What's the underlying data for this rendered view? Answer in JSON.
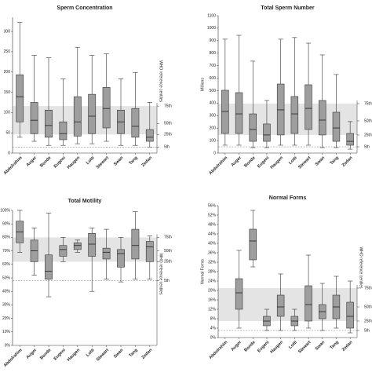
{
  "chart_data": [
    {
      "type": "box",
      "title": "Sperm Concentration",
      "categories": [
        "Abdolrahim",
        "Auger",
        "Bonde",
        "Eugeni",
        "Haugen",
        "Lotti",
        "Stewart",
        "Swan",
        "Tang",
        "Zedan"
      ],
      "max": [
        322,
        241,
        235,
        183,
        261,
        241,
        245,
        183,
        199,
        125
      ],
      "q3": [
        193,
        125,
        106,
        77,
        139,
        145,
        162,
        106,
        110,
        58
      ],
      "median": [
        139,
        81,
        68,
        48,
        77,
        91,
        110,
        77,
        66,
        39
      ],
      "q1": [
        77,
        48,
        39,
        33,
        42,
        48,
        62,
        48,
        39,
        29
      ],
      "min": [
        39,
        29,
        19,
        19,
        23,
        23,
        29,
        19,
        19,
        15
      ],
      "color": "#9e9e9e",
      "ylim": [
        0,
        335
      ],
      "yticks": [
        0,
        50,
        100,
        150,
        200,
        250,
        300
      ],
      "reference": {
        "title": "WHO reference centiles",
        "labels": [
          "75th",
          "50th",
          "25th",
          "5th"
        ],
        "values": [
          116,
          73,
          46,
          15
        ]
      }
    },
    {
      "type": "box",
      "title": "Total Sperm Number",
      "ylabel": "Millions",
      "categories": [
        "Abdolrahim",
        "Auger",
        "Bonde",
        "Eugeni",
        "Haugen",
        "Lotti",
        "Stewart",
        "Swan",
        "Tang",
        "Zedan"
      ],
      "max": [
        912,
        943,
        736,
        421,
        912,
        925,
        880,
        786,
        629,
        252
      ],
      "q3": [
        503,
        484,
        314,
        233,
        553,
        453,
        547,
        421,
        327,
        157
      ],
      "median": [
        333,
        314,
        189,
        145,
        346,
        314,
        358,
        264,
        201,
        94
      ],
      "q1": [
        157,
        157,
        94,
        94,
        145,
        157,
        189,
        145,
        94,
        63
      ],
      "min": [
        63,
        63,
        44,
        44,
        63,
        63,
        63,
        44,
        44,
        31
      ],
      "color": "#9e9e9e",
      "ylim": [
        0,
        1100
      ],
      "yticks": [
        0,
        100,
        200,
        300,
        400,
        500,
        600,
        700,
        800,
        900,
        1000,
        1100
      ],
      "reference": {
        "labels": [
          "75th",
          "50th",
          "25th",
          "5th"
        ],
        "values": [
          396,
          258,
          145,
          50
        ]
      }
    },
    {
      "type": "box",
      "title": "Total Motility",
      "categories": [
        "Abdolrahim",
        "Auger",
        "Bonde",
        "Eugeni",
        "Haugen",
        "Lotti",
        "Stewart",
        "Swan",
        "Tang",
        "Zedan"
      ],
      "max": [
        100,
        87,
        98,
        80,
        78,
        87,
        86,
        80,
        99,
        81
      ],
      "q3": [
        92,
        78,
        67,
        74,
        76,
        83,
        72,
        71,
        86,
        77
      ],
      "median": [
        84,
        70,
        55,
        71,
        74,
        75,
        69,
        68,
        74,
        73
      ],
      "q1": [
        76,
        62,
        49,
        66,
        71,
        66,
        64,
        58,
        64,
        62
      ],
      "min": [
        69,
        52,
        36,
        62,
        69,
        40,
        49,
        47,
        49,
        49
      ],
      "color": "#9e9e9e",
      "ylim": [
        0,
        100
      ],
      "yticks": [
        {
          "value": 0,
          "label": "0%"
        },
        {
          "value": 10,
          "label": "10%"
        },
        {
          "value": 20,
          "label": "20%"
        },
        {
          "value": 30,
          "label": "30%"
        },
        {
          "value": 40,
          "label": "40%"
        },
        {
          "value": 50,
          "label": "50%"
        },
        {
          "value": 60,
          "label": "60%"
        },
        {
          "value": 70,
          "label": "70%"
        },
        {
          "value": 80,
          "label": "80%"
        },
        {
          "value": 90,
          "label": "90%"
        },
        {
          "value": 100,
          "label": "100%"
        }
      ],
      "reference": {
        "title": "WHO reference centiles",
        "labels": [
          "75th",
          "50th",
          "25th",
          "5th"
        ],
        "values": [
          80,
          70,
          62,
          48
        ]
      }
    },
    {
      "type": "box",
      "title": "Normal Forms",
      "ylabel": "Normal Forms",
      "categories": [
        "Abdolrahim",
        "Auger",
        "Bonde",
        "Eugeni",
        "Haugen",
        "Lotti",
        "Stewart",
        "Swan",
        "Tang",
        "Zedan"
      ],
      "max": [
        null,
        37,
        54,
        12,
        27,
        12,
        35,
        23,
        26,
        24
      ],
      "q3": [
        null,
        25,
        46,
        9,
        18,
        9,
        22,
        14,
        18,
        15
      ],
      "median": [
        null,
        19,
        41,
        7,
        13,
        7,
        14,
        11,
        13,
        9
      ],
      "q1": [
        null,
        12,
        33,
        5,
        9,
        5,
        7,
        8,
        8,
        4
      ],
      "min": [
        null,
        4,
        30,
        3,
        3,
        3,
        4,
        3,
        4,
        2
      ],
      "color": "#9e9e9e",
      "ylim": [
        0,
        56
      ],
      "yticks": [
        {
          "value": 0,
          "label": "0%"
        },
        {
          "value": 4,
          "label": "4%"
        },
        {
          "value": 8,
          "label": "8%"
        },
        {
          "value": 12,
          "label": "12%"
        },
        {
          "value": 16,
          "label": "16%"
        },
        {
          "value": 20,
          "label": "20%"
        },
        {
          "value": 24,
          "label": "24%"
        },
        {
          "value": 28,
          "label": "28%"
        },
        {
          "value": 32,
          "label": "32%"
        },
        {
          "value": 36,
          "label": "36%"
        },
        {
          "value": 40,
          "label": "40%"
        },
        {
          "value": 44,
          "label": "44%"
        },
        {
          "value": 48,
          "label": "48%"
        },
        {
          "value": 52,
          "label": "52%"
        },
        {
          "value": 56,
          "label": "56%"
        }
      ],
      "reference": {
        "title": "WHO reference centiles",
        "labels": [
          "75th",
          "50th",
          "25th",
          "5th"
        ],
        "values": [
          21,
          13,
          7,
          3
        ]
      }
    }
  ]
}
